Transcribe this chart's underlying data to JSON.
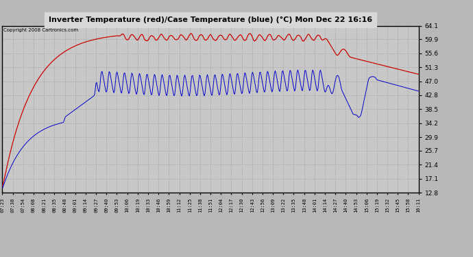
{
  "title": "Inverter Temperature (red)/Case Temperature (blue) (°C) Mon Dec 22 16:16",
  "copyright": "Copyright 2008 Cartronics.com",
  "yticks": [
    12.8,
    17.1,
    21.4,
    25.7,
    29.9,
    34.2,
    38.5,
    42.8,
    47.0,
    51.3,
    55.6,
    59.9,
    64.1
  ],
  "ylim": [
    12.8,
    64.1
  ],
  "bg_color": "#b8b8b8",
  "plot_bg_color": "#c8c8c8",
  "red_color": "#cc0000",
  "blue_color": "#0000cc",
  "grid_color": "#aaaaaa",
  "title_bg": "#d8d8d8",
  "x_labels": [
    "07:23",
    "07:38",
    "07:54",
    "08:08",
    "08:21",
    "08:35",
    "08:48",
    "09:01",
    "09:14",
    "09:27",
    "09:40",
    "09:53",
    "10:06",
    "10:19",
    "10:33",
    "10:46",
    "10:59",
    "11:12",
    "11:25",
    "11:38",
    "11:51",
    "12:04",
    "12:17",
    "12:30",
    "12:43",
    "12:56",
    "13:09",
    "13:22",
    "13:35",
    "13:48",
    "14:01",
    "14:14",
    "14:27",
    "14:40",
    "14:53",
    "15:06",
    "15:19",
    "15:32",
    "15:45",
    "15:58",
    "16:11"
  ]
}
